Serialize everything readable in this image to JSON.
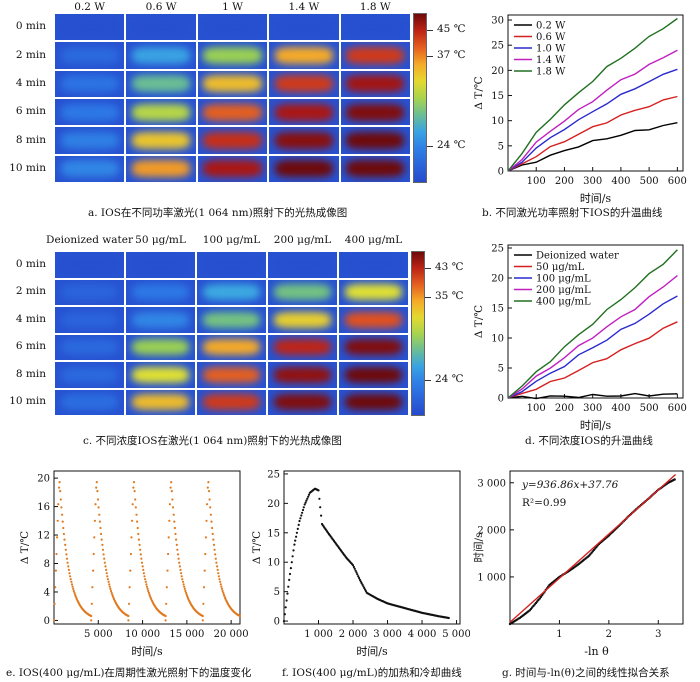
{
  "panel_a": {
    "col_headers": [
      "0.2 W",
      "0.6 W",
      "1 W",
      "1.4 W",
      "1.8 W"
    ],
    "row_headers": [
      "0 min",
      "2 min",
      "4 min",
      "6 min",
      "8 min",
      "10 min"
    ],
    "colorbar_labels": [
      "45 ℃",
      "37 ℃",
      "24 ℃"
    ],
    "colorbar_levels": [
      0.9,
      0.75,
      0.22
    ],
    "heat_levels": [
      [
        0.02,
        0.02,
        0.02,
        0.02,
        0.02
      ],
      [
        0.12,
        0.3,
        0.48,
        0.7,
        0.86
      ],
      [
        0.16,
        0.4,
        0.66,
        0.86,
        0.94
      ],
      [
        0.18,
        0.52,
        0.8,
        0.93,
        0.98
      ],
      [
        0.2,
        0.64,
        0.88,
        0.97,
        1.0
      ],
      [
        0.22,
        0.72,
        0.93,
        1.0,
        1.0
      ]
    ],
    "caption": "a. IOS在不同功率激光(1 064 nm)照射下的光热成像图"
  },
  "panel_c": {
    "col_headers": [
      "Deionized water",
      "50 μg/mL",
      "100 μg/mL",
      "200 μg/mL",
      "400 μg/mL"
    ],
    "row_headers": [
      "0 min",
      "2 min",
      "4 min",
      "6 min",
      "8 min",
      "10 min"
    ],
    "colorbar_labels": [
      "43 ℃",
      "35 ℃",
      "24 ℃"
    ],
    "colorbar_levels": [
      0.9,
      0.72,
      0.22
    ],
    "heat_levels": [
      [
        0.02,
        0.02,
        0.02,
        0.02,
        0.02
      ],
      [
        0.1,
        0.18,
        0.32,
        0.42,
        0.58
      ],
      [
        0.1,
        0.22,
        0.42,
        0.62,
        0.82
      ],
      [
        0.12,
        0.48,
        0.7,
        0.9,
        0.98
      ],
      [
        0.12,
        0.58,
        0.8,
        0.96,
        1.0
      ],
      [
        0.14,
        0.66,
        0.86,
        0.98,
        1.0
      ]
    ],
    "caption": "c. 不同浓度IOS在激光(1 064 nm)照射下的光热成像图"
  },
  "chart_data": [
    {
      "id": "b",
      "type": "line",
      "caption": "b. 不同激光功率照射下IOS的升温曲线",
      "xlabel": "时间/s",
      "ylabel": "Δ T/℃",
      "xlim": [
        0,
        620
      ],
      "ylim": [
        0,
        31
      ],
      "xticks": [
        100,
        200,
        300,
        400,
        500,
        600
      ],
      "yticks": [
        0,
        5,
        10,
        15,
        20,
        25,
        30
      ],
      "legend_position": "top-left",
      "x": [
        0,
        50,
        100,
        150,
        200,
        250,
        300,
        350,
        400,
        450,
        500,
        550,
        600
      ],
      "series": [
        {
          "name": "0.2 W",
          "color": "#000000",
          "values": [
            0,
            1.0,
            2.0,
            3.0,
            4.0,
            5.0,
            5.8,
            6.5,
            7.2,
            7.8,
            8.4,
            9.0,
            9.6
          ]
        },
        {
          "name": "0.6 W",
          "color": "#d62020",
          "values": [
            0,
            1.5,
            3.0,
            4.6,
            6.0,
            7.3,
            8.6,
            9.8,
            11.0,
            12.0,
            13.0,
            13.9,
            14.8
          ]
        },
        {
          "name": "1.0 W",
          "color": "#2a2acf",
          "values": [
            0,
            2.0,
            4.5,
            6.5,
            8.5,
            10.0,
            11.8,
            13.5,
            15.0,
            16.5,
            17.8,
            19.0,
            20.2
          ]
        },
        {
          "name": "1.4 W",
          "color": "#c020c0",
          "values": [
            0,
            2.5,
            5.5,
            8.0,
            10.0,
            12.0,
            14.0,
            16.0,
            18.0,
            19.5,
            21.0,
            22.5,
            24.0
          ]
        },
        {
          "name": "1.8 W",
          "color": "#207020",
          "values": [
            0,
            3.5,
            7.5,
            10.5,
            13.0,
            15.5,
            18.0,
            20.5,
            22.5,
            24.5,
            26.5,
            28.5,
            30.3
          ]
        }
      ]
    },
    {
      "id": "d",
      "type": "line",
      "caption": "d. 不同浓度IOS的升温曲线",
      "xlabel": "时间/s",
      "ylabel": "Δ T/℃",
      "xlim": [
        0,
        620
      ],
      "ylim": [
        0,
        25.5
      ],
      "xticks": [
        100,
        200,
        300,
        400,
        500,
        600
      ],
      "yticks": [
        0,
        5,
        10,
        15,
        20,
        25
      ],
      "legend_position": "top-left",
      "x": [
        0,
        50,
        100,
        150,
        200,
        250,
        300,
        350,
        400,
        450,
        500,
        550,
        600
      ],
      "series": [
        {
          "name": "Deionized water",
          "color": "#000000",
          "values": [
            0,
            0.1,
            0.15,
            0.2,
            0.25,
            0.3,
            0.35,
            0.4,
            0.45,
            0.5,
            0.55,
            0.6,
            0.7
          ]
        },
        {
          "name": "50 μg/mL",
          "color": "#d62020",
          "values": [
            0,
            0.8,
            1.6,
            2.5,
            3.5,
            4.6,
            5.7,
            6.8,
            7.9,
            9.0,
            10.2,
            11.4,
            12.7
          ]
        },
        {
          "name": "100 μg/mL",
          "color": "#2a2acf",
          "values": [
            0,
            1.3,
            2.7,
            4.0,
            5.5,
            7.0,
            8.4,
            9.8,
            11.2,
            12.6,
            14.0,
            15.5,
            17.0
          ]
        },
        {
          "name": "200 μg/mL",
          "color": "#c020c0",
          "values": [
            0,
            1.7,
            3.4,
            5.1,
            6.8,
            8.5,
            10.2,
            11.8,
            13.4,
            15.0,
            16.7,
            18.5,
            20.4
          ]
        },
        {
          "name": "400 μg/mL",
          "color": "#207020",
          "values": [
            0,
            2.0,
            4.2,
            6.3,
            8.4,
            10.5,
            12.5,
            14.5,
            16.5,
            18.5,
            20.5,
            22.5,
            24.7
          ]
        }
      ]
    },
    {
      "id": "e",
      "type": "scatter",
      "caption": "e. IOS(400 μg/mL)在周期性激光照射下的温度变化",
      "xlabel": "时间/s",
      "ylabel": "Δ T/℃",
      "xlim": [
        0,
        21000
      ],
      "ylim": [
        -0.5,
        21
      ],
      "xticks": [
        5000,
        10000,
        15000,
        20000
      ],
      "xtick_labels": [
        "5 000",
        "10 000",
        "15 000",
        "20 000"
      ],
      "yticks": [
        0,
        4,
        8,
        12,
        16,
        20
      ],
      "color": "#e07a1f",
      "cycles": {
        "count": 5,
        "start": 0,
        "period": 4200,
        "heat_duration": 600,
        "peak": 20.0
      },
      "points": [
        [
          0,
          0
        ],
        [
          600,
          20
        ],
        [
          1000,
          13
        ],
        [
          1500,
          10
        ],
        [
          2000,
          8
        ],
        [
          2500,
          5.5
        ],
        [
          3000,
          3
        ],
        [
          3500,
          1.5
        ],
        [
          4000,
          0.8
        ],
        [
          4200,
          0.5
        ]
      ]
    },
    {
      "id": "f",
      "type": "scatter",
      "caption": "f. IOS(400 μg/mL)的加热和冷却曲线",
      "xlabel": "时间/s",
      "ylabel": "Δ T/℃",
      "xlim": [
        0,
        5100
      ],
      "ylim": [
        -0.5,
        25.5
      ],
      "xticks": [
        1000,
        2000,
        3000,
        4000,
        5000
      ],
      "xtick_labels": [
        "1 000",
        "2 000",
        "3 000",
        "4 000",
        "5 000"
      ],
      "yticks": [
        0,
        5,
        10,
        15,
        20,
        25
      ],
      "color": "#111111",
      "points": [
        [
          0,
          0
        ],
        [
          150,
          7
        ],
        [
          300,
          13
        ],
        [
          450,
          17
        ],
        [
          600,
          19.8
        ],
        [
          750,
          21.8
        ],
        [
          900,
          22.5
        ],
        [
          1000,
          22.2
        ],
        [
          1100,
          16.5
        ],
        [
          1300,
          14.8
        ],
        [
          1500,
          13.2
        ],
        [
          1800,
          10.8
        ],
        [
          2000,
          9.5
        ],
        [
          2200,
          7.0
        ],
        [
          2400,
          4.8
        ],
        [
          2700,
          3.8
        ],
        [
          3000,
          3.0
        ],
        [
          3500,
          2.2
        ],
        [
          4000,
          1.4
        ],
        [
          4500,
          0.8
        ],
        [
          4800,
          0.5
        ]
      ]
    },
    {
      "id": "g",
      "type": "scatter",
      "caption": "g. 时间与-ln(θ)之间的线性拟合关系",
      "xlabel": "-ln θ",
      "ylabel": "时间/s",
      "xlim": [
        0,
        3.5
      ],
      "ylim": [
        0,
        3250
      ],
      "xticks": [
        1,
        2,
        3
      ],
      "yticks": [
        1000,
        2000,
        3000
      ],
      "ytick_labels": [
        "1 000",
        "2 000",
        "3 000"
      ],
      "equation": "y=936.86x+37.76",
      "r_squared": "R²=0.99",
      "fit": {
        "slope": 936.86,
        "intercept": 37.76,
        "color": "#d62020"
      },
      "points": [
        [
          0.0,
          0
        ],
        [
          0.2,
          130
        ],
        [
          0.4,
          290
        ],
        [
          0.6,
          540
        ],
        [
          0.8,
          830
        ],
        [
          1.0,
          1000
        ],
        [
          1.2,
          1130
        ],
        [
          1.4,
          1280
        ],
        [
          1.6,
          1450
        ],
        [
          1.8,
          1700
        ],
        [
          2.0,
          1880
        ],
        [
          2.2,
          2080
        ],
        [
          2.4,
          2290
        ],
        [
          2.6,
          2480
        ],
        [
          2.8,
          2660
        ],
        [
          3.0,
          2850
        ],
        [
          3.2,
          3000
        ],
        [
          3.35,
          3080
        ]
      ]
    }
  ]
}
